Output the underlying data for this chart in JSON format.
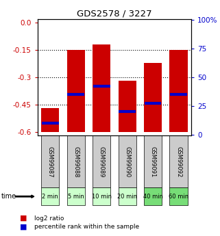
{
  "title": "GDS2578 / 3227",
  "samples": [
    "GSM99087",
    "GSM99088",
    "GSM99089",
    "GSM99090",
    "GSM99091",
    "GSM99092"
  ],
  "time_labels": [
    "2 min",
    "5 min",
    "10 min",
    "20 min",
    "40 min",
    "60 min"
  ],
  "bar_bottoms": [
    -0.6,
    -0.6,
    -0.6,
    -0.6,
    -0.6,
    -0.6
  ],
  "bar_tops": [
    -0.47,
    -0.15,
    -0.12,
    -0.32,
    -0.22,
    -0.15
  ],
  "percentile_values": [
    10.0,
    35.0,
    42.0,
    20.0,
    27.0,
    35.0
  ],
  "ylim_left": [
    -0.62,
    0.02
  ],
  "ylim_right": [
    -1.0,
    101.0
  ],
  "yticks_left": [
    0.0,
    -0.15,
    -0.3,
    -0.45,
    -0.6
  ],
  "yticks_right": [
    0,
    25,
    50,
    75,
    100
  ],
  "bar_color": "#cc0000",
  "marker_color": "#0000cc",
  "bar_width": 0.7,
  "sample_bg_color": "#cccccc",
  "time_colors": [
    "#ccffcc",
    "#ccffcc",
    "#ccffcc",
    "#ccffcc",
    "#77dd77",
    "#77dd77"
  ],
  "legend_log2_color": "#cc0000",
  "legend_pct_color": "#0000cc",
  "grid_yticks": [
    -0.15,
    -0.3,
    -0.45
  ]
}
